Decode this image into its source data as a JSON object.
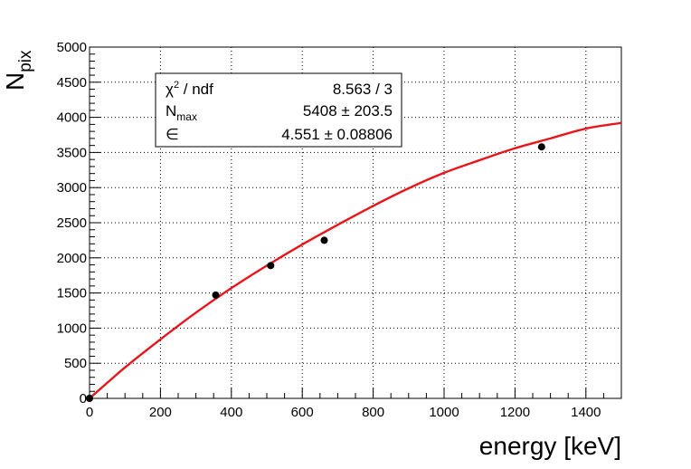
{
  "chart_data": {
    "type": "scatter",
    "xlabel": "energy [keV]",
    "ylabel": {
      "main": "N",
      "sub": "pix"
    },
    "xlim": [
      0,
      1500
    ],
    "ylim": [
      0,
      5000
    ],
    "xticks": [
      0,
      200,
      400,
      600,
      800,
      1000,
      1200,
      1400
    ],
    "yticks": [
      0,
      500,
      1000,
      1500,
      2000,
      2500,
      3000,
      3500,
      4000,
      4500,
      5000
    ],
    "grid": true,
    "points": [
      {
        "x": 0,
        "y": 0
      },
      {
        "x": 356,
        "y": 1470
      },
      {
        "x": 511,
        "y": 1890
      },
      {
        "x": 662,
        "y": 2250
      },
      {
        "x": 1275,
        "y": 3580
      }
    ],
    "fit": {
      "type": "curve",
      "color": "#e8161a",
      "x_range": [
        0,
        1500
      ],
      "samples": [
        {
          "x": 0,
          "y": 0
        },
        {
          "x": 100,
          "y": 440
        },
        {
          "x": 200,
          "y": 840
        },
        {
          "x": 300,
          "y": 1220
        },
        {
          "x": 400,
          "y": 1570
        },
        {
          "x": 500,
          "y": 1890
        },
        {
          "x": 600,
          "y": 2190
        },
        {
          "x": 700,
          "y": 2470
        },
        {
          "x": 800,
          "y": 2740
        },
        {
          "x": 900,
          "y": 2990
        },
        {
          "x": 1000,
          "y": 3210
        },
        {
          "x": 1100,
          "y": 3390
        },
        {
          "x": 1200,
          "y": 3560
        },
        {
          "x": 1300,
          "y": 3700
        },
        {
          "x": 1400,
          "y": 3840
        },
        {
          "x": 1500,
          "y": 3920
        }
      ]
    },
    "stats_box": {
      "rows": [
        {
          "label": "χ",
          "label_sup": "2",
          "label_rest": " / ndf",
          "value": "8.563 / 3"
        },
        {
          "label": "N",
          "label_sub": "max",
          "value": "5408 ± 203.5"
        },
        {
          "label": "∈",
          "value": "4.551 ± 0.08806"
        }
      ]
    }
  }
}
